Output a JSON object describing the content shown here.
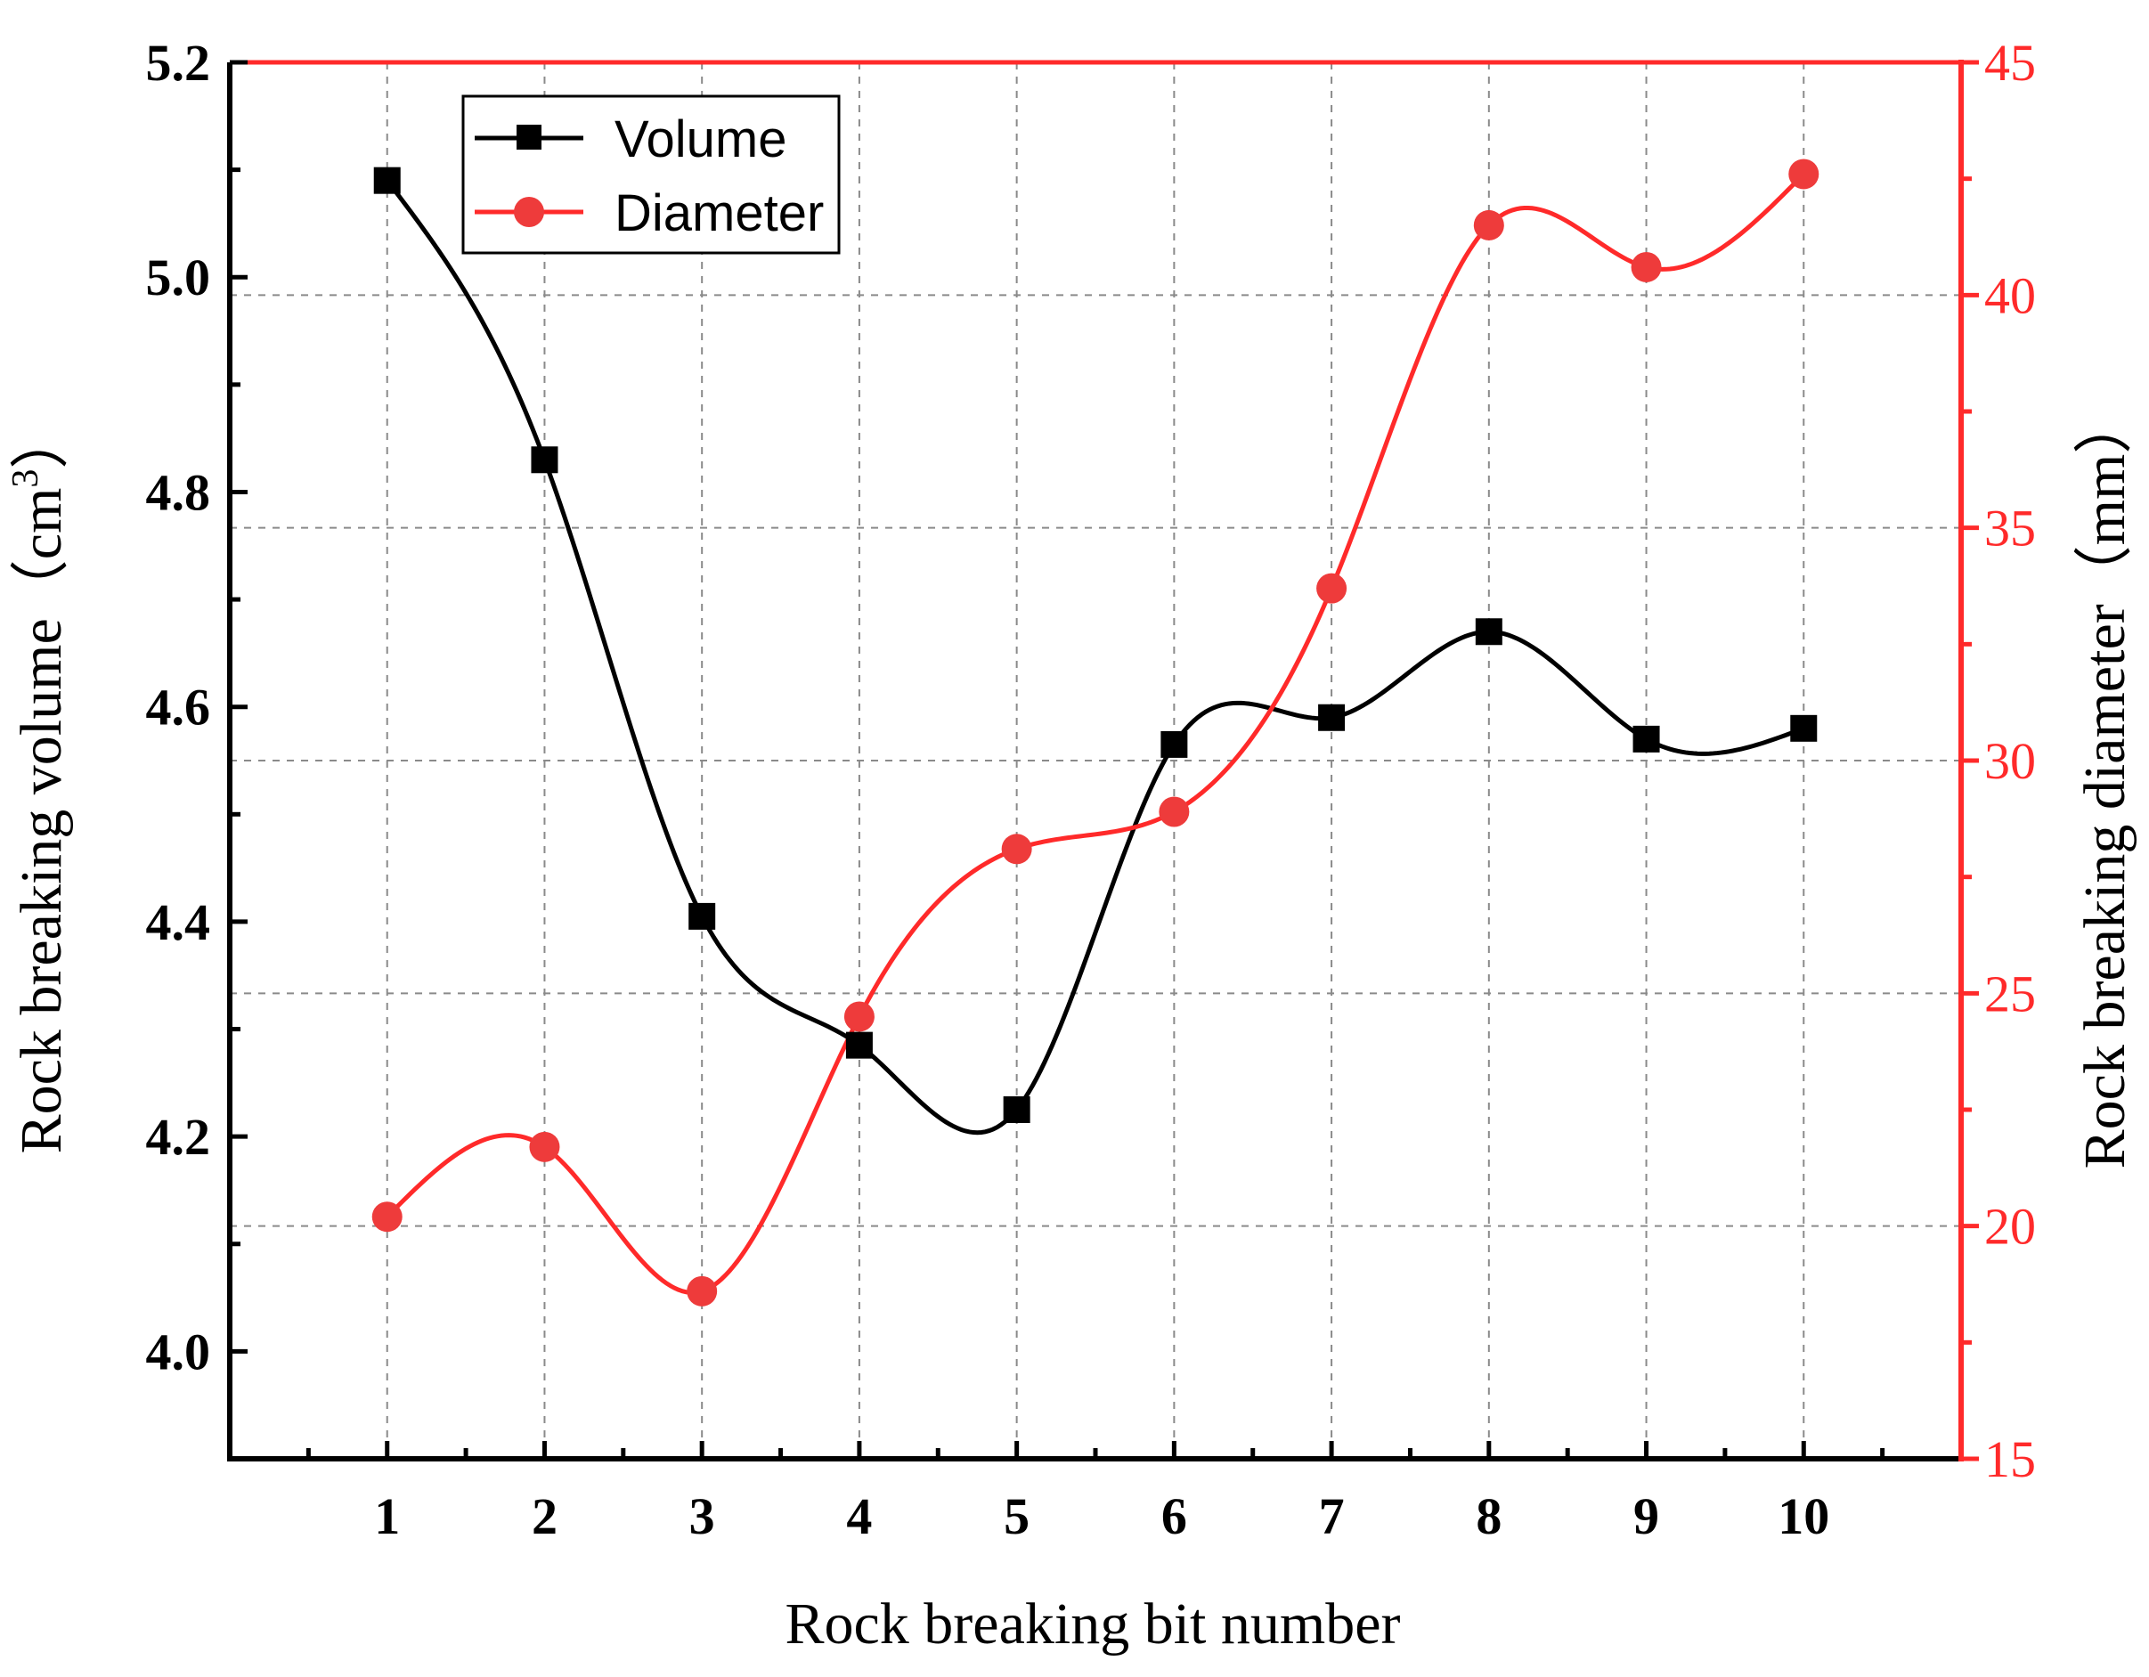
{
  "chart_data": {
    "type": "line",
    "xlabel": "Rock breaking bit number",
    "ylabel_left": {
      "main": "Rock breaking volume（cm",
      "sup": "3",
      "end": "）"
    },
    "ylabel_right": "Rock breaking diameter（mm）",
    "x": [
      1,
      2,
      3,
      4,
      5,
      6,
      7,
      8,
      9,
      10
    ],
    "xlim": [
      0,
      11
    ],
    "ylim_left": [
      3.9,
      5.2
    ],
    "ylim_right": [
      15,
      45
    ],
    "yticks_left": [
      "4.0",
      "4.2",
      "4.4",
      "4.6",
      "4.8",
      "5.0",
      "5.2"
    ],
    "yticks_right": [
      "15",
      "20",
      "25",
      "30",
      "35",
      "40",
      "45"
    ],
    "xticks": [
      "1",
      "2",
      "3",
      "4",
      "5",
      "6",
      "7",
      "8",
      "9",
      "10"
    ],
    "grid": true,
    "legend_position": "top-left",
    "series": [
      {
        "name": "Volume",
        "axis": "left",
        "marker": "square",
        "color": "#000000",
        "values": [
          5.09,
          4.83,
          4.405,
          4.285,
          4.225,
          4.565,
          4.59,
          4.67,
          4.57,
          4.58
        ]
      },
      {
        "name": "Diameter",
        "axis": "right",
        "marker": "circle",
        "color": "#ff2a2a",
        "values": [
          20.2,
          21.7,
          18.6,
          24.5,
          28.1,
          28.9,
          33.7,
          41.5,
          40.6,
          42.6
        ]
      }
    ]
  }
}
